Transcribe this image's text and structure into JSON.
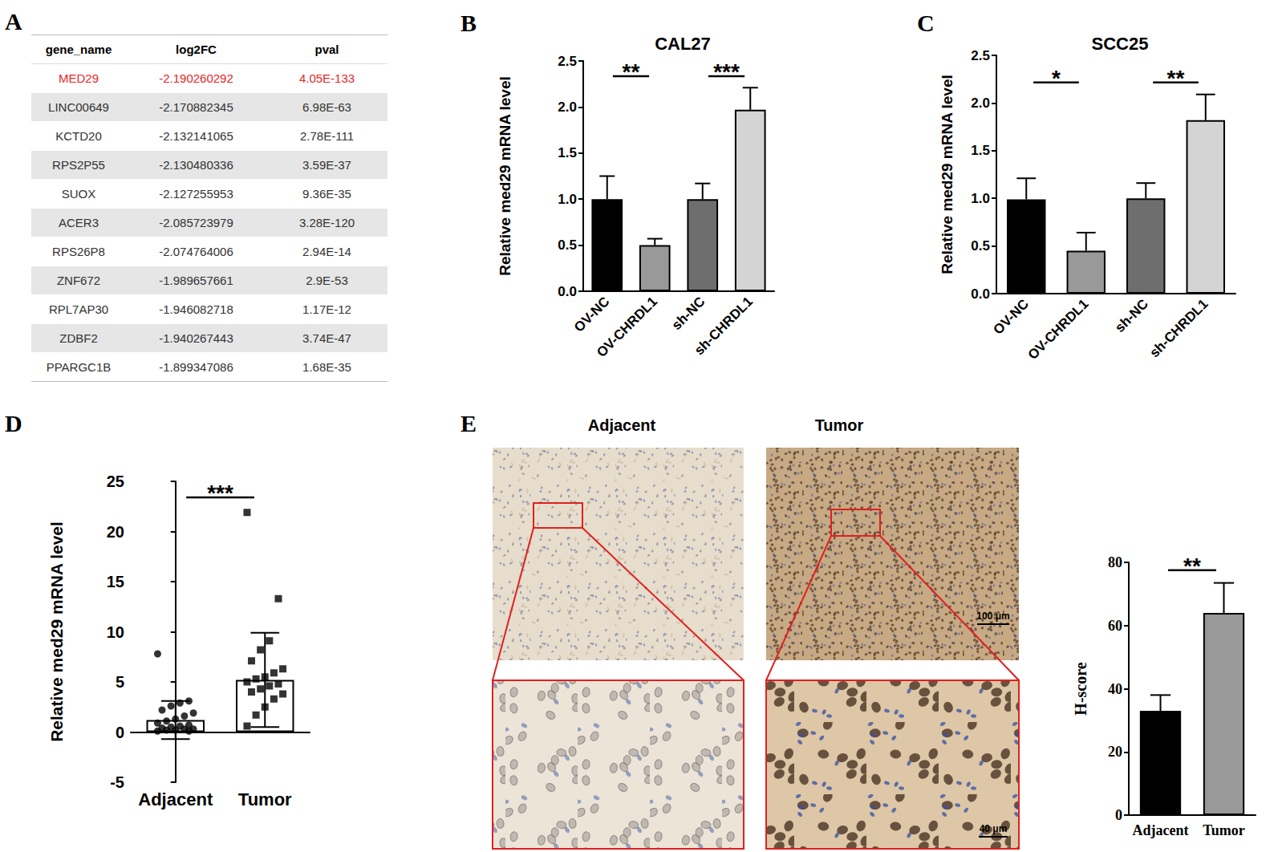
{
  "panel_labels": [
    "A",
    "B",
    "C",
    "D",
    "E"
  ],
  "table": {
    "header": [
      "gene_name",
      "log2FC",
      "pval"
    ],
    "rows": [
      {
        "cells": [
          "MED29",
          "-2.190260292",
          "4.05E-133"
        ],
        "color": "#e8262b"
      },
      {
        "cells": [
          "LINC00649",
          "-2.170882345",
          "6.98E-63"
        ]
      },
      {
        "cells": [
          "KCTD20",
          "-2.132141065",
          "2.78E-111"
        ]
      },
      {
        "cells": [
          "RPS2P55",
          "-2.130480336",
          "3.59E-37"
        ]
      },
      {
        "cells": [
          "SUOX",
          "-2.127255953",
          "9.36E-35"
        ]
      },
      {
        "cells": [
          "ACER3",
          "-2.085723979",
          "3.28E-120"
        ]
      },
      {
        "cells": [
          "RPS26P8",
          "-2.074764006",
          "2.94E-14"
        ]
      },
      {
        "cells": [
          "ZNF672",
          "-1.989657661",
          "2.9E-53"
        ]
      },
      {
        "cells": [
          "RPL7AP30",
          "-1.946082718",
          "1.17E-12"
        ]
      },
      {
        "cells": [
          "ZDBF2",
          "-1.940267443",
          "3.74E-47"
        ]
      },
      {
        "cells": [
          "PPARGC1B",
          "-1.899347086",
          "1.68E-35"
        ]
      }
    ]
  },
  "chart_data": [
    {
      "type": "bar",
      "title": "CAL27",
      "y_label": "Relative med29 mRNA level",
      "categories": [
        "OV-NC",
        "OV-CHRDL1",
        "sh-NC",
        "sh-CHRDL1"
      ],
      "values": [
        1.0,
        0.5,
        1.0,
        1.97
      ],
      "errors": [
        0.25,
        0.07,
        0.17,
        0.24
      ],
      "colors": [
        "#000000",
        "#999999",
        "#6e6e6e",
        "#d4d4d4"
      ],
      "ylim": [
        0,
        2.5
      ],
      "yticks": [
        {
          "value": 0,
          "label": "0.0"
        },
        {
          "value": 0.5,
          "label": "0.5"
        },
        {
          "value": 1,
          "label": "1.0"
        },
        {
          "value": 1.5,
          "label": "1.5"
        },
        {
          "value": 2,
          "label": "2.0"
        },
        {
          "value": 2.5,
          "label": "2.5"
        }
      ],
      "significance": [
        {
          "groups": [
            0,
            1
          ],
          "label": "**"
        },
        {
          "groups": [
            2,
            3
          ],
          "label": "***"
        }
      ]
    },
    {
      "type": "bar",
      "title": "SCC25",
      "y_label": "Relative med29 mRNA level",
      "categories": [
        "OV-NC",
        "OV-CHRDL1",
        "sh-NC",
        "sh-CHRDL1"
      ],
      "values": [
        0.99,
        0.45,
        1.0,
        1.82
      ],
      "errors": [
        0.22,
        0.19,
        0.16,
        0.27
      ],
      "colors": [
        "#000000",
        "#999999",
        "#6e6e6e",
        "#d4d4d4"
      ],
      "ylim": [
        0,
        2.5
      ],
      "yticks": [
        {
          "value": 0,
          "label": "0.0"
        },
        {
          "value": 0.5,
          "label": "0.5"
        },
        {
          "value": 1,
          "label": "1.0"
        },
        {
          "value": 1.5,
          "label": "1.5"
        },
        {
          "value": 2,
          "label": "2.0"
        },
        {
          "value": 2.5,
          "label": "2.5"
        }
      ],
      "significance": [
        {
          "groups": [
            0,
            1
          ],
          "label": "*"
        },
        {
          "groups": [
            2,
            3
          ],
          "label": "**"
        }
      ]
    },
    {
      "type": "bar_scatter",
      "y_label": "Relative med29 mRNA level",
      "categories": [
        "Adjacent",
        "Tumor"
      ],
      "values": [
        1.2,
        5.2
      ],
      "errors": [
        1.9,
        4.7
      ],
      "color": "#ffffff",
      "points": [
        {
          "marker": "circle",
          "values": [
            7.8,
            3.1,
            2.9,
            2.6,
            2.2,
            1.9,
            1.6,
            1.3,
            1.1,
            0.9,
            0.7,
            0.6,
            0.5,
            0.4,
            0.3,
            0.3,
            0.2,
            0.2,
            0.1,
            0.1
          ]
        },
        {
          "marker": "square",
          "values": [
            21.9,
            13.3,
            9.1,
            8.2,
            7.1,
            6.3,
            5.9,
            5.5,
            5.3,
            5.0,
            4.8,
            4.6,
            4.3,
            4.0,
            3.8,
            3.3,
            2.5,
            1.7,
            0.6
          ]
        }
      ],
      "ylim": [
        -5,
        25
      ],
      "yticks": [
        -5,
        0,
        5,
        10,
        15,
        20,
        25
      ],
      "significance": [
        {
          "groups": [
            0,
            1
          ],
          "label": "***"
        }
      ]
    },
    {
      "type": "bar",
      "y_label": "H-score",
      "categories": [
        "Adjacent",
        "Tumor"
      ],
      "values": [
        33,
        64
      ],
      "errors": [
        5,
        9.5
      ],
      "colors": [
        "#000000",
        "#999999"
      ],
      "ylim": [
        0,
        80
      ],
      "yticks": [
        0,
        20,
        40,
        60,
        80
      ],
      "significance": [
        {
          "groups": [
            0,
            1
          ],
          "label": "**"
        }
      ]
    }
  ],
  "micrographs": {
    "titles": [
      "Adjacent",
      "Tumor"
    ],
    "scale_bars": [
      "100 μm",
      "40 μm"
    ]
  }
}
